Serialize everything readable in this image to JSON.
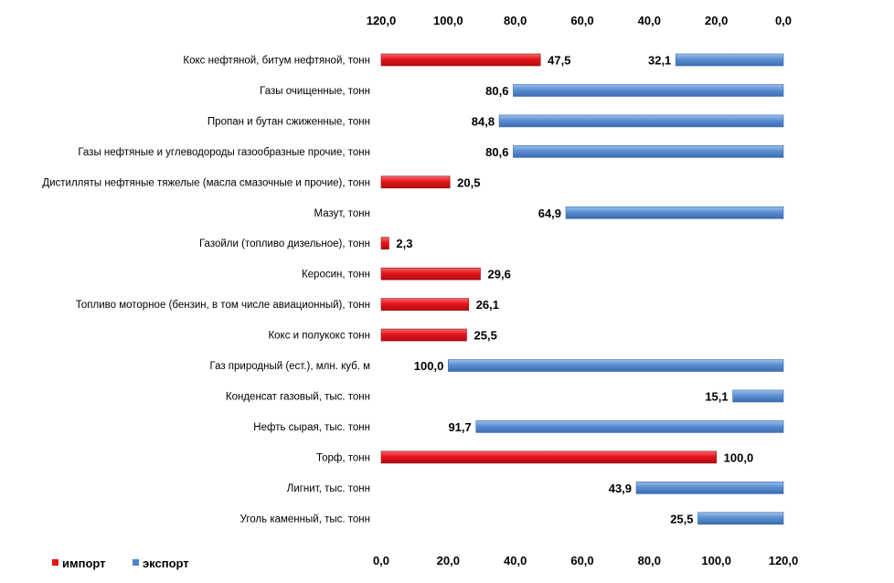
{
  "chart_data": {
    "type": "bar",
    "orientation": "horizontal",
    "categories": [
      "Кокс нефтяной, битум нефтяной, тонн",
      "Газы очищенные, тонн",
      "Пропан и бутан сжиженные, тонн",
      "Газы нефтяные и углеводороды газообразные прочие, тонн",
      "Дистилляты нефтяные тяжелые (масла смазочные  и прочие), тонн",
      "Мазут, тонн",
      "Газойли (топливо дизельное), тонн",
      "Керосин, тонн",
      "Топливо моторное (бензин, в том числе авиационный),  тонн",
      "Кокс и полукокс  тонн",
      "Газ природный  (ест.), млн. куб. м",
      "Конденсат газовый, тыс. тонн",
      "Нефть сырая, тыс. тонн",
      "Торф, тонн",
      "Лигнит, тыс. тонн",
      "Уголь каменный, тыс. тонн"
    ],
    "series": [
      {
        "name": "импорт",
        "color": "#e8141b",
        "axis": "bottom",
        "values": [
          47.5,
          null,
          null,
          null,
          20.5,
          null,
          2.3,
          29.6,
          26.1,
          25.5,
          null,
          null,
          null,
          100.0,
          null,
          null
        ],
        "labels": [
          "47,5",
          "",
          "",
          "",
          "20,5",
          "",
          "2,3",
          "29,6",
          "26,1",
          "25,5",
          "",
          "",
          "",
          "100,0",
          "",
          ""
        ]
      },
      {
        "name": "экспорт",
        "color": "#4f81c7",
        "axis": "top-reversed",
        "values": [
          32.1,
          80.6,
          84.8,
          80.6,
          null,
          64.9,
          null,
          null,
          null,
          null,
          100.0,
          15.1,
          91.7,
          null,
          43.9,
          25.5
        ],
        "labels": [
          "32,1",
          "80,6",
          "84,8",
          "80,6",
          "",
          "64,9",
          "",
          "",
          "",
          "",
          "100,0",
          "15,1",
          "91,7",
          "",
          "43,9",
          "25,5"
        ]
      }
    ],
    "x_bottom": {
      "ticks": [
        "0,0",
        "20,0",
        "40,0",
        "60,0",
        "80,0",
        "100,0",
        "120,0"
      ],
      "lim": [
        0,
        120
      ]
    },
    "x_top": {
      "ticks": [
        "120,0",
        "100,0",
        "80,0",
        "60,0",
        "40,0",
        "20,0",
        "0,0"
      ],
      "lim": [
        120,
        0
      ]
    },
    "grid": false,
    "legend": {
      "position": "bottom-left",
      "entries": [
        "импорт",
        "экспорт"
      ]
    }
  }
}
